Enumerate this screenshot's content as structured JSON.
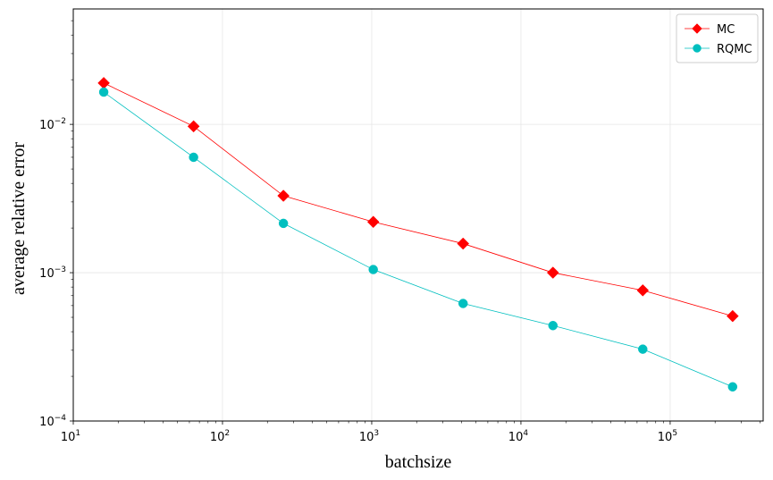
{
  "chart_data": {
    "type": "line",
    "title": "",
    "xlabel": "batchsize",
    "ylabel": "average relative error",
    "xscale": "log",
    "yscale": "log",
    "xlim": [
      10,
      420000
    ],
    "ylim": [
      0.0001,
      0.06
    ],
    "grid": true,
    "legend_position": "top-right",
    "x": [
      16,
      64,
      256,
      1024,
      4096,
      16384,
      65536,
      262144
    ],
    "series": [
      {
        "name": "MC",
        "color": "#ff0000",
        "marker": "diamond",
        "values": [
          0.019,
          0.0097,
          0.0033,
          0.0022,
          0.00157,
          0.001,
          0.00076,
          0.00051
        ]
      },
      {
        "name": "RQMC",
        "color": "#00bfbf",
        "marker": "circle",
        "values": [
          0.0165,
          0.006,
          0.00215,
          0.00105,
          0.00062,
          0.00044,
          0.000305,
          0.00017
        ]
      }
    ],
    "x_ticks": [
      {
        "base": "10",
        "exp": "1",
        "value": 10
      },
      {
        "base": "10",
        "exp": "2",
        "value": 100
      },
      {
        "base": "10",
        "exp": "3",
        "value": 1000
      },
      {
        "base": "10",
        "exp": "4",
        "value": 10000
      },
      {
        "base": "10",
        "exp": "5",
        "value": 100000
      }
    ],
    "y_ticks": [
      {
        "base": "10",
        "exp": "−4",
        "value": 0.0001
      },
      {
        "base": "10",
        "exp": "−3",
        "value": 0.001
      },
      {
        "base": "10",
        "exp": "−2",
        "value": 0.01
      }
    ]
  }
}
